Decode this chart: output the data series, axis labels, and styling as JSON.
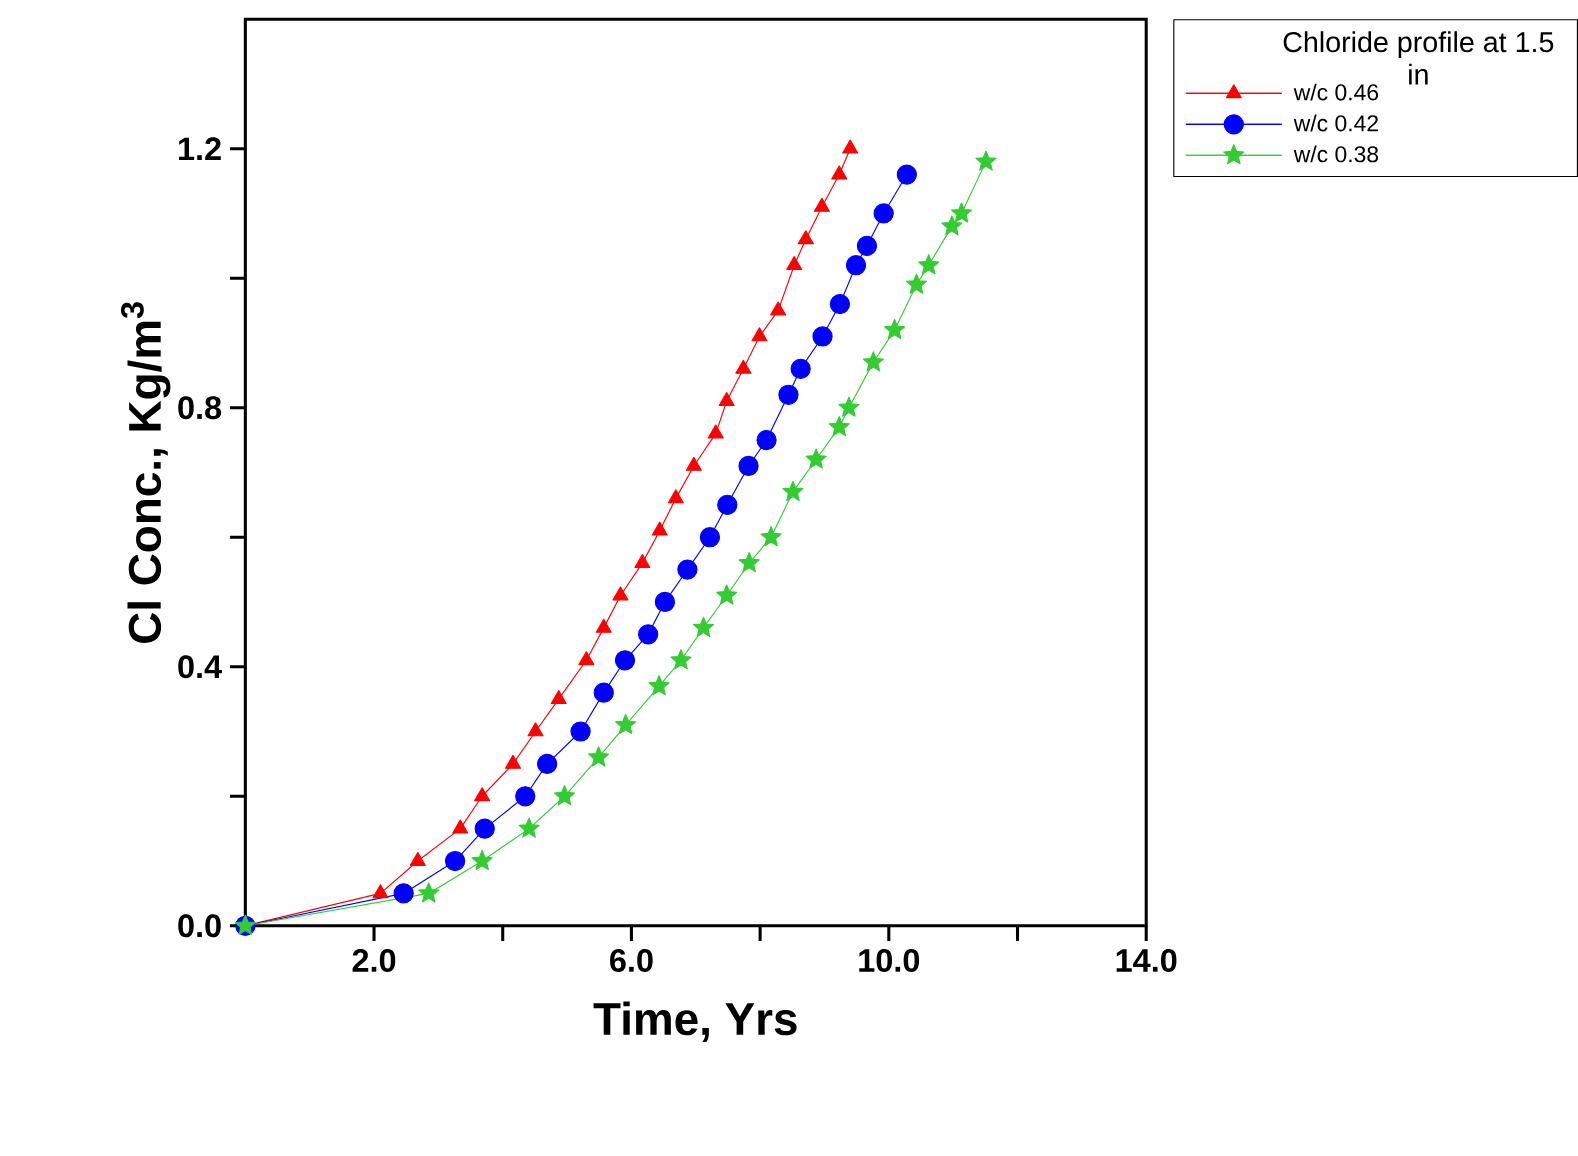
{
  "chart_data": {
    "type": "line",
    "xlabel": "Time, Yrs",
    "ylabel": "Cl Conc., Kg/m$^{3}$",
    "legend_title": "Chloride profile at 1.5 in",
    "legend": "right",
    "xlim": [
      0,
      14
    ],
    "ylim": [
      0,
      1.4
    ],
    "xticks": [
      {
        "value": 2,
        "label": "2.0"
      },
      {
        "value": 4,
        "label": null
      },
      {
        "value": 6,
        "label": "6.0"
      },
      {
        "value": 8,
        "label": null
      },
      {
        "value": 10,
        "label": "10.0"
      },
      {
        "value": 12,
        "label": null
      },
      {
        "value": 14,
        "label": "14.0"
      }
    ],
    "yticks": [
      {
        "value": 0,
        "label": "0.0"
      },
      {
        "value": 0.2,
        "label": null
      },
      {
        "value": 0.4,
        "label": "0.4"
      },
      {
        "value": 0.6,
        "label": null
      },
      {
        "value": 0.8,
        "label": "0.8"
      },
      {
        "value": 1.0,
        "label": null
      },
      {
        "value": 1.2,
        "label": "1.2"
      }
    ],
    "grid": false,
    "line_style": "solid",
    "series": [
      {
        "name": "w/c 0.46",
        "color": "#ff0000",
        "marker": "triangle",
        "x": [
          0,
          2.1,
          2.68,
          3.34,
          3.68,
          4.16,
          4.51,
          4.87,
          5.3,
          5.57,
          5.83,
          6.17,
          6.44,
          6.69,
          6.97,
          7.31,
          7.48,
          7.74,
          7.99,
          8.28,
          8.53,
          8.71,
          8.96,
          9.23,
          9.4
        ],
        "values": [
          0,
          0.05,
          0.1,
          0.15,
          0.2,
          0.25,
          0.3,
          0.35,
          0.41,
          0.46,
          0.51,
          0.56,
          0.61,
          0.66,
          0.71,
          0.76,
          0.81,
          0.86,
          0.91,
          0.95,
          1.02,
          1.06,
          1.11,
          1.16,
          1.2
        ]
      },
      {
        "name": "w/c 0.42",
        "color": "#0000ff",
        "marker": "circle",
        "x": [
          0,
          2.46,
          3.26,
          3.72,
          4.35,
          4.69,
          5.21,
          5.57,
          5.9,
          6.26,
          6.52,
          6.87,
          7.22,
          7.49,
          7.82,
          8.1,
          8.44,
          8.63,
          8.97,
          9.24,
          9.49,
          9.66,
          9.92,
          10.28
        ],
        "values": [
          0,
          0.05,
          0.1,
          0.15,
          0.2,
          0.25,
          0.3,
          0.36,
          0.41,
          0.45,
          0.5,
          0.55,
          0.6,
          0.65,
          0.71,
          0.75,
          0.82,
          0.86,
          0.91,
          0.96,
          1.02,
          1.05,
          1.1,
          1.16
        ]
      },
      {
        "name": "w/c 0.38",
        "color": "#33cc33",
        "marker": "star",
        "x": [
          0,
          2.85,
          3.68,
          4.41,
          4.96,
          5.49,
          5.91,
          6.43,
          6.77,
          7.12,
          7.48,
          7.83,
          8.17,
          8.51,
          8.87,
          9.23,
          9.38,
          9.76,
          10.09,
          10.43,
          10.62,
          10.98,
          11.13,
          11.51
        ],
        "values": [
          0,
          0.05,
          0.1,
          0.15,
          0.2,
          0.26,
          0.31,
          0.37,
          0.41,
          0.46,
          0.51,
          0.56,
          0.6,
          0.67,
          0.72,
          0.77,
          0.8,
          0.87,
          0.92,
          0.99,
          1.02,
          1.08,
          1.1,
          1.18
        ]
      }
    ]
  }
}
